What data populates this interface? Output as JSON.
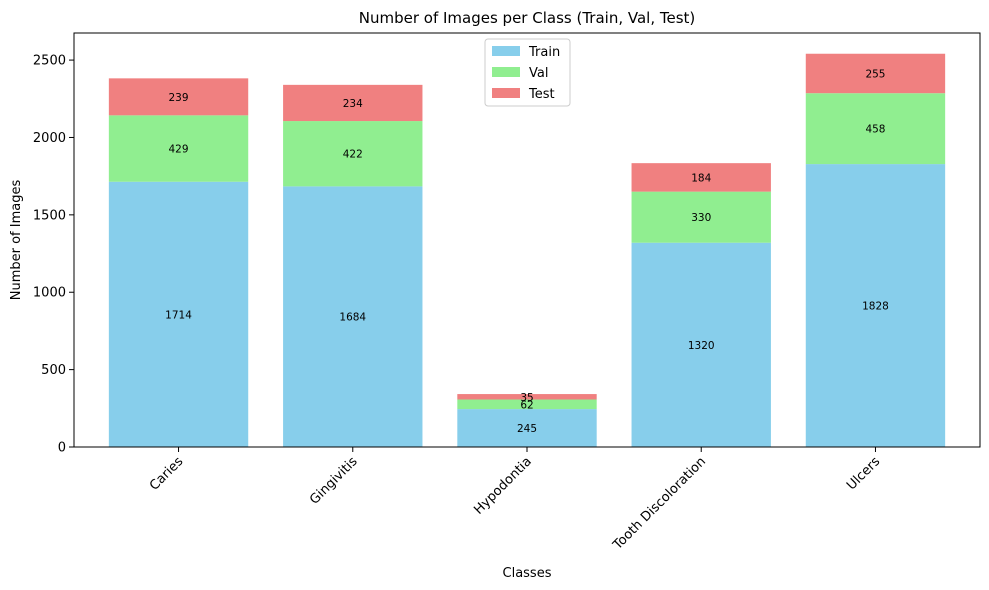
{
  "chart_data": {
    "type": "bar",
    "stacked": true,
    "title": "Number of Images per Class (Train, Val, Test)",
    "xlabel": "Classes",
    "ylabel": "Number of Images",
    "categories": [
      "Caries",
      "Gingivitis",
      "Hypodontia",
      "Tooth Discoloration",
      "Ulcers"
    ],
    "series": [
      {
        "name": "Train",
        "color": "#87ceeb",
        "values": [
          1714,
          1684,
          245,
          1320,
          1828
        ]
      },
      {
        "name": "Val",
        "color": "#90ee90",
        "values": [
          429,
          422,
          62,
          330,
          458
        ]
      },
      {
        "name": "Test",
        "color": "#f08080",
        "values": [
          239,
          234,
          35,
          184,
          255
        ]
      }
    ],
    "ylim": [
      0,
      2675
    ],
    "yticks": [
      0,
      500,
      1000,
      1500,
      2000,
      2500
    ],
    "legend_position": "upper-center",
    "grid": false
  }
}
